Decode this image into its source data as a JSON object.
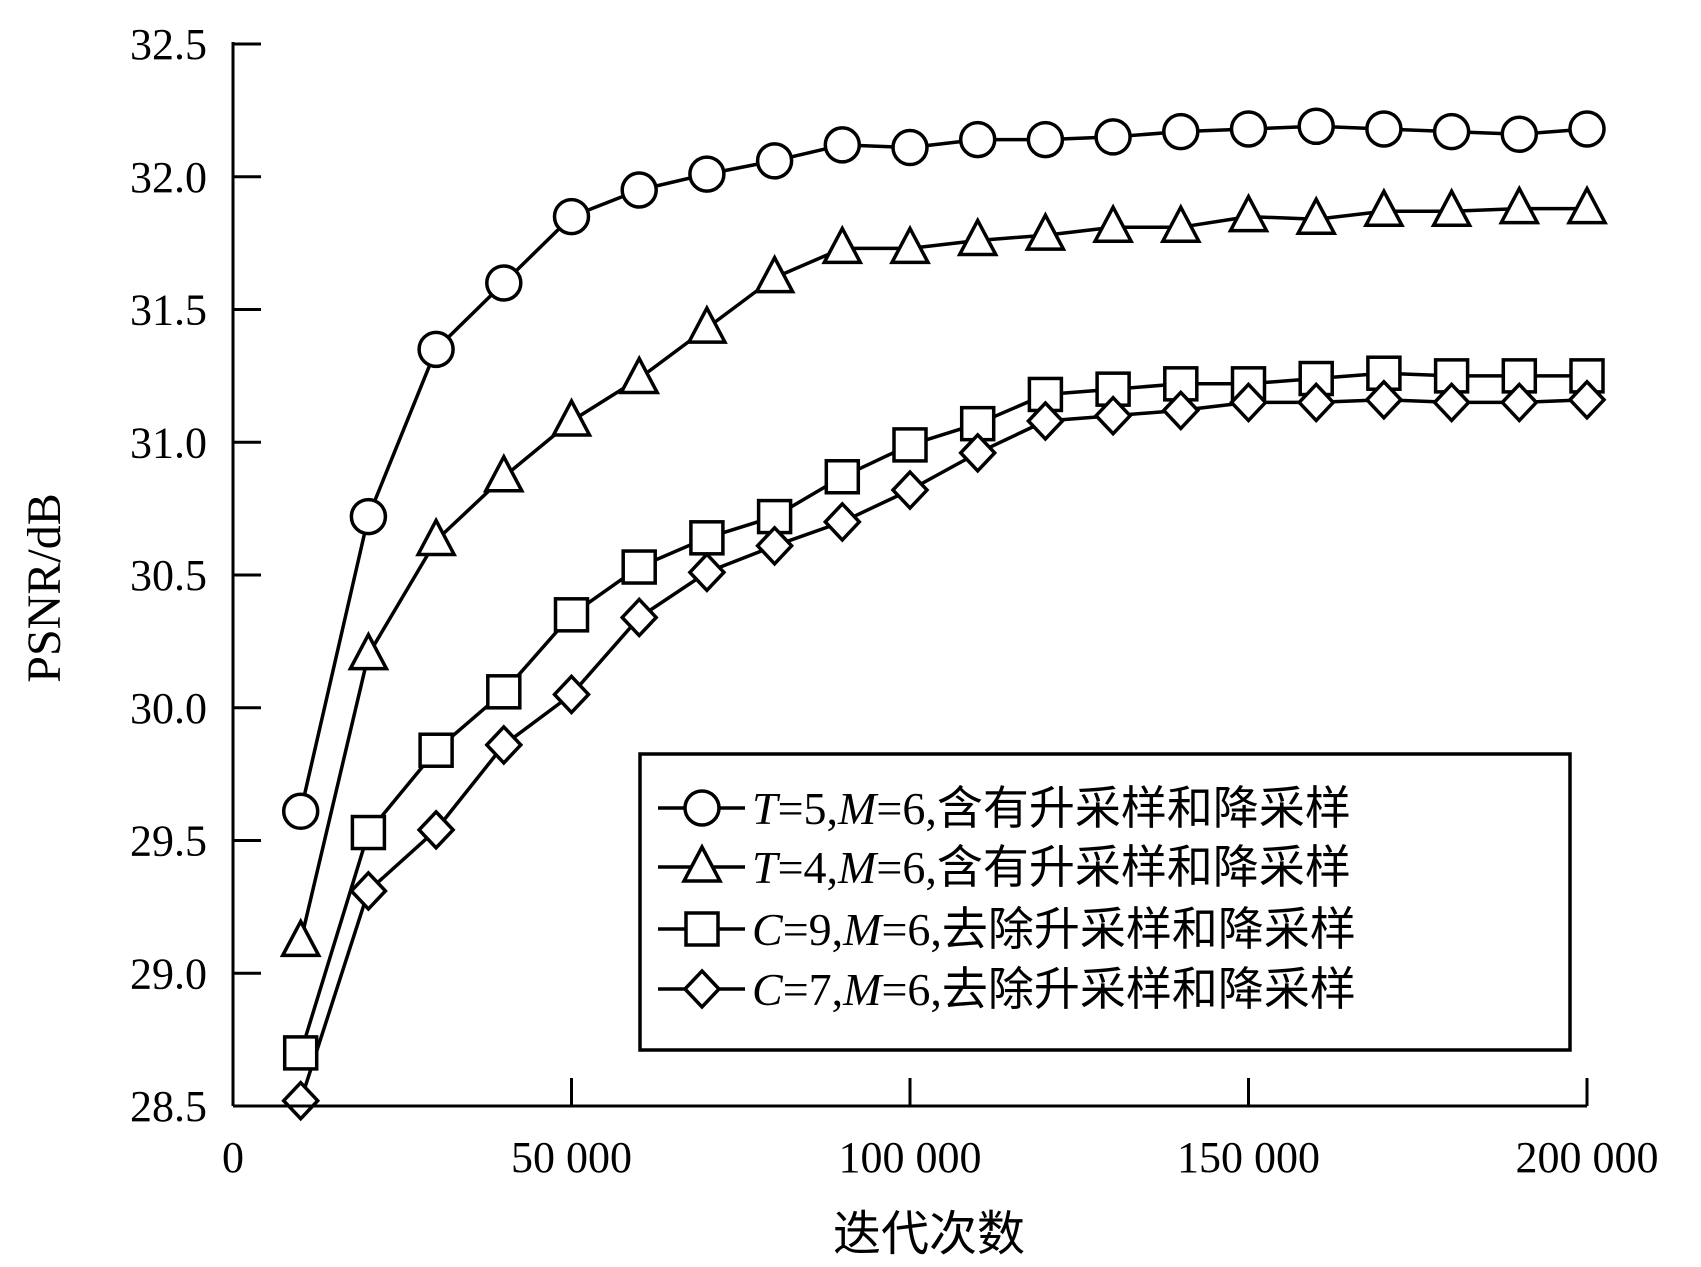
{
  "chart_data": {
    "type": "line",
    "xlabel": "迭代次数",
    "ylabel": "PSNR/dB",
    "xlim": [
      0,
      200000
    ],
    "ylim": [
      28.5,
      32.5
    ],
    "x_ticks": [
      0,
      50000,
      100000,
      150000,
      200000
    ],
    "x_tick_labels": [
      "0",
      "50 000",
      "100 000",
      "150 000",
      "200 000"
    ],
    "y_ticks": [
      28.5,
      29.0,
      29.5,
      30.0,
      30.5,
      31.0,
      31.5,
      32.0,
      32.5
    ],
    "y_tick_labels": [
      "28.5",
      "29.0",
      "29.5",
      "30.0",
      "30.5",
      "31.0",
      "31.5",
      "32.0",
      "32.5"
    ],
    "legend_position": "bottom-right",
    "x": [
      10000,
      20000,
      30000,
      40000,
      50000,
      60000,
      70000,
      80000,
      90000,
      100000,
      110000,
      120000,
      130000,
      140000,
      150000,
      160000,
      170000,
      180000,
      190000,
      200000
    ],
    "series": [
      {
        "name": "T=5,M=6,含有升采样和降采样",
        "legend_parts": [
          {
            "text": "T",
            "italic": true
          },
          {
            "text": "=5,",
            "italic": false
          },
          {
            "text": "M",
            "italic": true
          },
          {
            "text": "=6,含有升采样和降采样",
            "italic": false
          }
        ],
        "marker": "circle",
        "values": [
          29.61,
          30.72,
          31.35,
          31.6,
          31.85,
          31.95,
          32.01,
          32.06,
          32.12,
          32.11,
          32.14,
          32.14,
          32.15,
          32.17,
          32.18,
          32.19,
          32.18,
          32.17,
          32.16,
          32.18
        ]
      },
      {
        "name": "T=4,M=6,含有升采样和降采样",
        "legend_parts": [
          {
            "text": "T",
            "italic": true
          },
          {
            "text": "=4,",
            "italic": false
          },
          {
            "text": "M",
            "italic": true
          },
          {
            "text": "=6,含有升采样和降采样",
            "italic": false
          }
        ],
        "marker": "triangle",
        "values": [
          29.12,
          30.2,
          30.63,
          30.87,
          31.08,
          31.24,
          31.43,
          31.62,
          31.73,
          31.73,
          31.76,
          31.78,
          31.81,
          31.81,
          31.85,
          31.84,
          31.87,
          31.87,
          31.88,
          31.88
        ]
      },
      {
        "name": "C=9,M=6,去除升采样和降采样",
        "legend_parts": [
          {
            "text": "C",
            "italic": true
          },
          {
            "text": "=9,",
            "italic": false
          },
          {
            "text": "M",
            "italic": true
          },
          {
            "text": "=6,去除升采样和降采样",
            "italic": false
          }
        ],
        "marker": "square",
        "values": [
          28.7,
          29.53,
          29.84,
          30.06,
          30.35,
          30.53,
          30.64,
          30.72,
          30.87,
          30.99,
          31.07,
          31.18,
          31.2,
          31.22,
          31.22,
          31.24,
          31.26,
          31.25,
          31.25,
          31.25
        ]
      },
      {
        "name": "C=7,M=6,去除升采样和降采样",
        "legend_parts": [
          {
            "text": "C",
            "italic": true
          },
          {
            "text": "=7,",
            "italic": false
          },
          {
            "text": "M",
            "italic": true
          },
          {
            "text": "=6,去除升采样和降采样",
            "italic": false
          }
        ],
        "marker": "diamond",
        "values": [
          28.52,
          29.31,
          29.54,
          29.86,
          30.05,
          30.34,
          30.51,
          30.61,
          30.7,
          30.82,
          30.96,
          31.08,
          31.1,
          31.12,
          31.15,
          31.15,
          31.16,
          31.15,
          31.15,
          31.16
        ]
      }
    ]
  }
}
